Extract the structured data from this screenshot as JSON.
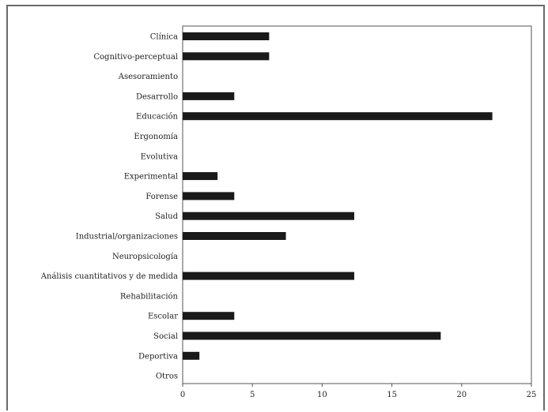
{
  "chart_data": {
    "type": "bar",
    "orientation": "horizontal",
    "title": "",
    "xlabel": "",
    "ylabel": "",
    "categories": [
      "Clínica",
      "Cognitivo-perceptual",
      "Asesoramiento",
      "Desarrollo",
      "Educación",
      "Ergonomía",
      "Evolutiva",
      "Experimental",
      "Forense",
      "Salud",
      "Industrial/organizaciones",
      "Neuropsicología",
      "Análisis cuantitativos y de medida",
      "Rehabilitación",
      "Escolar",
      "Social",
      "Deportiva",
      "Otros"
    ],
    "values": [
      6.2,
      6.2,
      0,
      3.7,
      22.2,
      0,
      0,
      2.5,
      3.7,
      12.3,
      7.4,
      0,
      12.3,
      0,
      3.7,
      18.5,
      1.2,
      0
    ],
    "xlim": [
      0,
      25
    ],
    "xticks": [
      "0",
      "5",
      "10",
      "15",
      "20",
      "25"
    ],
    "grid": false,
    "legend": "none",
    "bar_color": "#1a1a1a",
    "axis_color": "#555555"
  }
}
